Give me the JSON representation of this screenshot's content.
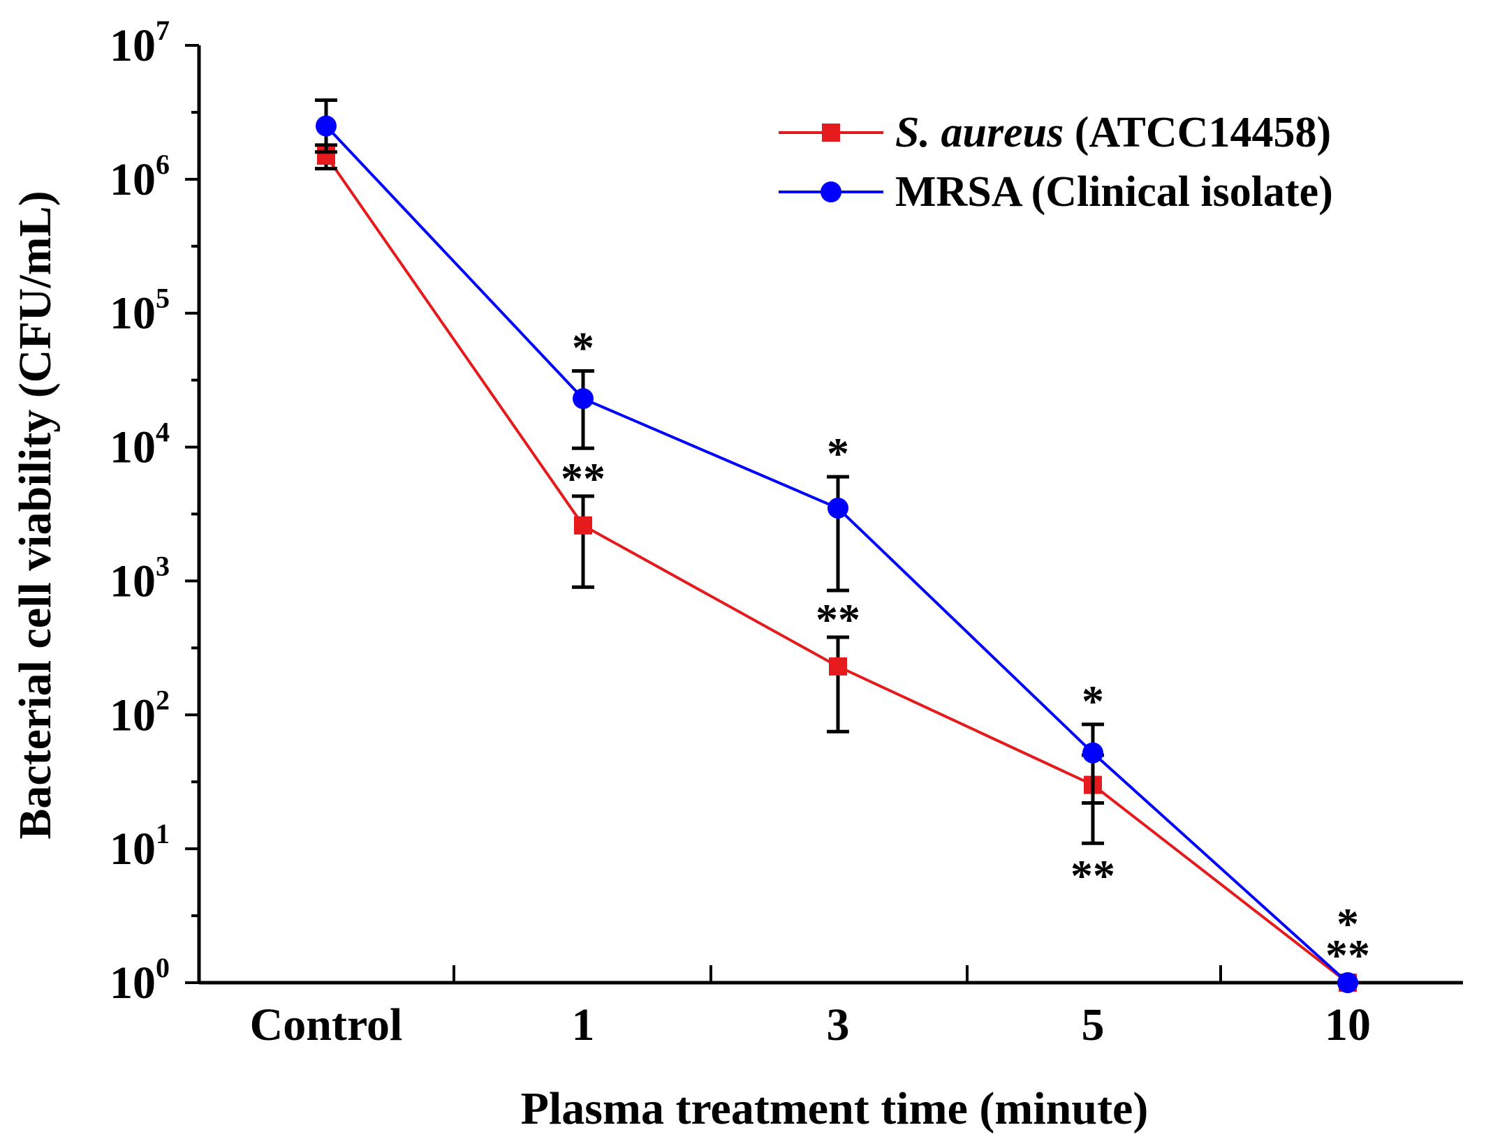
{
  "chart_data": {
    "type": "line",
    "categories": [
      "Control",
      "1",
      "3",
      "5",
      "10"
    ],
    "xlabel": "Plasma treatment time (minute)",
    "ylabel": "Bacterial cell viability (CFU/mL)",
    "yscale": "log10",
    "ylim": [
      1,
      10000000
    ],
    "yticks": [
      {
        "base": "10",
        "exp": "0",
        "value": 1
      },
      {
        "base": "10",
        "exp": "1",
        "value": 10
      },
      {
        "base": "10",
        "exp": "2",
        "value": 100
      },
      {
        "base": "10",
        "exp": "3",
        "value": 1000
      },
      {
        "base": "10",
        "exp": "4",
        "value": 10000
      },
      {
        "base": "10",
        "exp": "5",
        "value": 100000
      },
      {
        "base": "10",
        "exp": "6",
        "value": 1000000
      },
      {
        "base": "10",
        "exp": "7",
        "value": 10000000
      }
    ],
    "legend_position": "top-right",
    "series": [
      {
        "name": "S. aureus (ATCC14458)",
        "legend_italic": "S. aureus",
        "legend_rest": " (ATCC14458)",
        "color": "#e41a1c",
        "marker": "square",
        "values": [
          1500000,
          2600,
          230,
          30,
          1
        ],
        "err_low": [
          1200000,
          900,
          75,
          11,
          1
        ],
        "err_high": [
          1800000,
          4300,
          380,
          50,
          1
        ],
        "significance": [
          "",
          "**",
          "**",
          "**",
          "**"
        ],
        "significance_pos": [
          "",
          "above",
          "above",
          "below",
          "above"
        ]
      },
      {
        "name": "MRSA (Clinical isolate)",
        "legend_italic": "",
        "legend_rest": "MRSA (Clinical isolate)",
        "color": "#0000ff",
        "marker": "circle",
        "values": [
          2500000,
          23000,
          3500,
          52,
          1
        ],
        "err_low": [
          1600000,
          9800,
          850,
          22,
          1
        ],
        "err_high": [
          3900000,
          37000,
          6000,
          85,
          1
        ],
        "significance": [
          "",
          "*",
          "*",
          "*",
          "*"
        ],
        "significance_pos": [
          "",
          "above",
          "above",
          "above",
          "above"
        ]
      }
    ]
  }
}
